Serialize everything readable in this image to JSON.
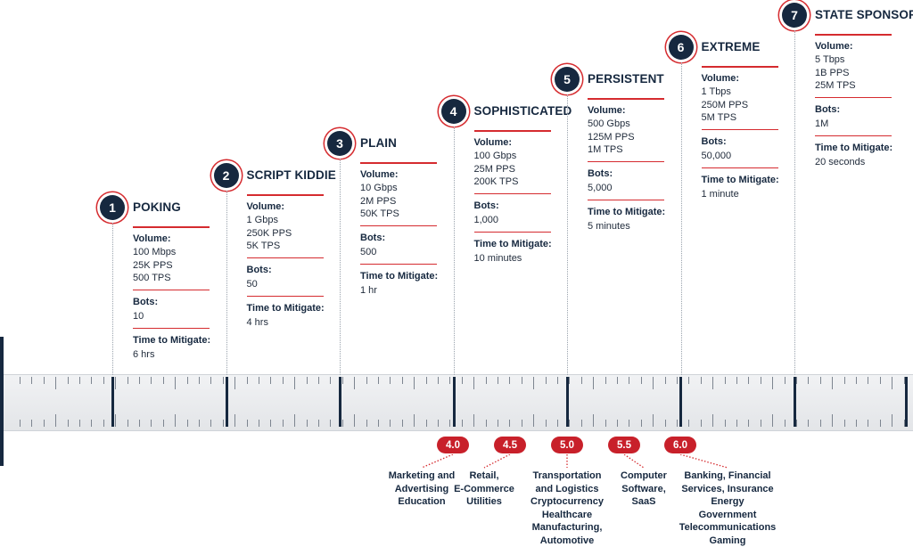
{
  "levels": [
    {
      "num": "1",
      "title": "POKING",
      "volume_label": "Volume:",
      "volume": [
        "100 Mbps",
        "25K PPS",
        "500 TPS"
      ],
      "bots_label": "Bots:",
      "bots": "10",
      "time_label": "Time to Mitigate:",
      "time": "6 hrs"
    },
    {
      "num": "2",
      "title": "SCRIPT KIDDIE",
      "volume_label": "Volume:",
      "volume": [
        "1 Gbps",
        "250K PPS",
        "5K TPS"
      ],
      "bots_label": "Bots:",
      "bots": "50",
      "time_label": "Time to Mitigate:",
      "time": "4 hrs"
    },
    {
      "num": "3",
      "title": "PLAIN",
      "volume_label": "Volume:",
      "volume": [
        "10 Gbps",
        "2M PPS",
        "50K TPS"
      ],
      "bots_label": "Bots:",
      "bots": "500",
      "time_label": "Time to Mitigate:",
      "time": "1 hr"
    },
    {
      "num": "4",
      "title": "SOPHISTICATED",
      "volume_label": "Volume:",
      "volume": [
        "100 Gbps",
        "25M PPS",
        "200K TPS"
      ],
      "bots_label": "Bots:",
      "bots": "1,000",
      "time_label": "Time to Mitigate:",
      "time": "10 minutes"
    },
    {
      "num": "5",
      "title": "PERSISTENT",
      "volume_label": "Volume:",
      "volume": [
        "500 Gbps",
        "125M PPS",
        "1M TPS"
      ],
      "bots_label": "Bots:",
      "bots": "5,000",
      "time_label": "Time to Mitigate:",
      "time": "5 minutes"
    },
    {
      "num": "6",
      "title": "EXTREME",
      "volume_label": "Volume:",
      "volume": [
        "1 Tbps",
        "250M PPS",
        "5M TPS"
      ],
      "bots_label": "Bots:",
      "bots": "50,000",
      "time_label": "Time to Mitigate:",
      "time": "1 minute"
    },
    {
      "num": "7",
      "title": "STATE SPONSORED",
      "volume_label": "Volume:",
      "volume": [
        "5 Tbps",
        "1B PPS",
        "25M TPS"
      ],
      "bots_label": "Bots:",
      "bots": "1M",
      "time_label": "Time to Mitigate:",
      "time": "20 seconds"
    }
  ],
  "industries": [
    {
      "score": "4.0",
      "lines": [
        "Marketing and",
        "Advertising",
        "Education"
      ]
    },
    {
      "score": "4.5",
      "lines": [
        "Retail,",
        "E-Commerce",
        "Utilities"
      ]
    },
    {
      "score": "5.0",
      "lines": [
        "Transportation",
        "and Logistics",
        "Cryptocurrency",
        "Healthcare",
        "Manufacturing,",
        "Automotive"
      ]
    },
    {
      "score": "5.5",
      "lines": [
        "Computer",
        "Software,",
        "SaaS"
      ]
    },
    {
      "score": "6.0",
      "lines": [
        "Banking, Financial",
        "Services, Insurance",
        "Energy",
        "Government",
        "Telecommunications",
        "Gaming"
      ]
    }
  ],
  "colors": {
    "navy": "#16283f",
    "red": "#d52b2f",
    "pill": "#c8202a"
  }
}
